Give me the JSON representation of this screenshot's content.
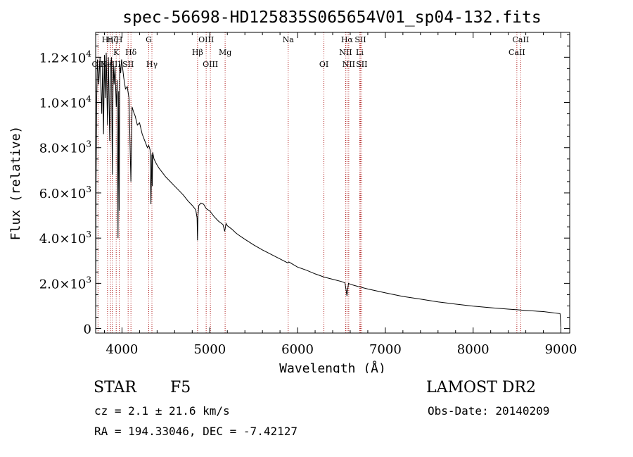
{
  "chart_data": {
    "type": "line",
    "title": "spec-56698-HD125835S065654V01_sp04-132.fits",
    "xlabel": "Wavelength (Å)",
    "ylabel": "Flux (relative)",
    "xlim": [
      3700,
      9100
    ],
    "ylim": [
      -200,
      13100
    ],
    "xticks": [
      {
        "value": 4000,
        "label": "4000"
      },
      {
        "value": 5000,
        "label": "5000"
      },
      {
        "value": 6000,
        "label": "6000"
      },
      {
        "value": 7000,
        "label": "7000"
      },
      {
        "value": 8000,
        "label": "8000"
      },
      {
        "value": 9000,
        "label": "9000"
      }
    ],
    "yticks": [
      {
        "value": 0,
        "mant": "0",
        "exp": ""
      },
      {
        "value": 2000,
        "mant": "2.0×10",
        "exp": "3"
      },
      {
        "value": 4000,
        "mant": "4.0×10",
        "exp": "3"
      },
      {
        "value": 6000,
        "mant": "6.0×10",
        "exp": "3"
      },
      {
        "value": 8000,
        "mant": "8.0×10",
        "exp": "3"
      },
      {
        "value": 10000,
        "mant": "1.0×10",
        "exp": "4"
      },
      {
        "value": 12000,
        "mant": "1.2×10",
        "exp": "4"
      }
    ],
    "series": [
      {
        "name": "spectrum",
        "x": [
          3700,
          3705,
          3712,
          3720,
          3735,
          3750,
          3770,
          3780,
          3790,
          3800,
          3810,
          3820,
          3835,
          3845,
          3860,
          3870,
          3880,
          3890,
          3900,
          3910,
          3920,
          3935,
          3945,
          3955,
          3962,
          3968,
          3975,
          3985,
          3995,
          4005,
          4020,
          4040,
          4060,
          4080,
          4101,
          4115,
          4130,
          4150,
          4175,
          4200,
          4230,
          4260,
          4290,
          4305,
          4320,
          4330,
          4340,
          4345,
          4350,
          4365,
          4390,
          4420,
          4460,
          4500,
          4550,
          4600,
          4650,
          4700,
          4750,
          4800,
          4840,
          4855,
          4860,
          4866,
          4875,
          4900,
          4930,
          4960,
          5000,
          5050,
          5100,
          5150,
          5170,
          5185,
          5200,
          5250,
          5300,
          5350,
          5400,
          5500,
          5600,
          5700,
          5800,
          5890,
          5900,
          6000,
          6100,
          6200,
          6300,
          6400,
          6500,
          6540,
          6563,
          6580,
          6600,
          6700,
          6800,
          7000,
          7200,
          7400,
          7600,
          7800,
          8000,
          8200,
          8400,
          8500,
          8600,
          8800,
          8990,
          9000
        ],
        "values": [
          400,
          6500,
          10200,
          11900,
          10800,
          12000,
          9500,
          11800,
          8600,
          12100,
          10200,
          12200,
          9000,
          12000,
          8300,
          11600,
          12000,
          6800,
          11800,
          10800,
          11600,
          9800,
          11000,
          4000,
          10500,
          5200,
          11700,
          11300,
          11900,
          11600,
          11100,
          10600,
          10700,
          10200,
          6500,
          9800,
          9600,
          9400,
          9000,
          9100,
          8600,
          8300,
          8000,
          8100,
          7900,
          5500,
          7700,
          6300,
          7800,
          7500,
          7300,
          7100,
          6900,
          6700,
          6500,
          6300,
          6100,
          5900,
          5650,
          5450,
          5250,
          4900,
          3900,
          5000,
          5450,
          5550,
          5500,
          5300,
          5200,
          4950,
          4750,
          4600,
          4300,
          4650,
          4550,
          4400,
          4220,
          4080,
          3950,
          3700,
          3480,
          3280,
          3080,
          2900,
          2950,
          2720,
          2580,
          2420,
          2280,
          2180,
          2080,
          2020,
          1450,
          2000,
          1960,
          1850,
          1750,
          1580,
          1420,
          1300,
          1180,
          1080,
          990,
          920,
          860,
          830,
          800,
          750,
          660,
          60
        ]
      }
    ],
    "lines": [
      {
        "name": "Hη",
        "wavelength": 3835,
        "row": 0
      },
      {
        "name": "Hζ",
        "wavelength": 3889,
        "row": 0
      },
      {
        "name": "H",
        "wavelength": 3969,
        "row": 0
      },
      {
        "name": "K",
        "wavelength": 3934,
        "row": 1
      },
      {
        "name": "Hδ",
        "wavelength": 4102,
        "row": 1
      },
      {
        "name": "G",
        "wavelength": 4305,
        "row": 0
      },
      {
        "name": "Hγ",
        "wavelength": 4341,
        "row": 2
      },
      {
        "name": "OII",
        "wavelength": 3727,
        "row": 2
      },
      {
        "name": "NeIII",
        "wavelength": 3869,
        "row": 2
      },
      {
        "name": "SII",
        "wavelength": 4070,
        "row": 2
      },
      {
        "name": "OIII",
        "wavelength": 4959,
        "row": 0
      },
      {
        "name": "Hβ",
        "wavelength": 4861,
        "row": 1
      },
      {
        "name": "OIII",
        "wavelength": 5007,
        "row": 2
      },
      {
        "name": "Mg",
        "wavelength": 5175,
        "row": 1
      },
      {
        "name": "Na",
        "wavelength": 5893,
        "row": 0
      },
      {
        "name": "OI",
        "wavelength": 6300,
        "row": 2
      },
      {
        "name": "Hα",
        "wavelength": 6563,
        "row": 0
      },
      {
        "name": "SII",
        "wavelength": 6716,
        "row": 0
      },
      {
        "name": "NII",
        "wavelength": 6548,
        "row": 1
      },
      {
        "name": "Li",
        "wavelength": 6708,
        "row": 1
      },
      {
        "name": "NII",
        "wavelength": 6583,
        "row": 2
      },
      {
        "name": "SII",
        "wavelength": 6731,
        "row": 2
      },
      {
        "name": "CaII",
        "wavelength": 8542,
        "row": 0
      },
      {
        "name": "CaII",
        "wavelength": 8498,
        "row": 1
      }
    ]
  },
  "info": {
    "object_class": "STAR",
    "subclass": "F5",
    "survey": "LAMOST DR2",
    "cz": "cz = 2.1 ± 21.6 km/s",
    "obs_date": "Obs-Date: 20140209",
    "radec": "RA = 194.33046, DEC =  -7.42127"
  },
  "colors": {
    "spectrum": "#000000",
    "line_markers": "#b22222",
    "axis": "#000000"
  }
}
